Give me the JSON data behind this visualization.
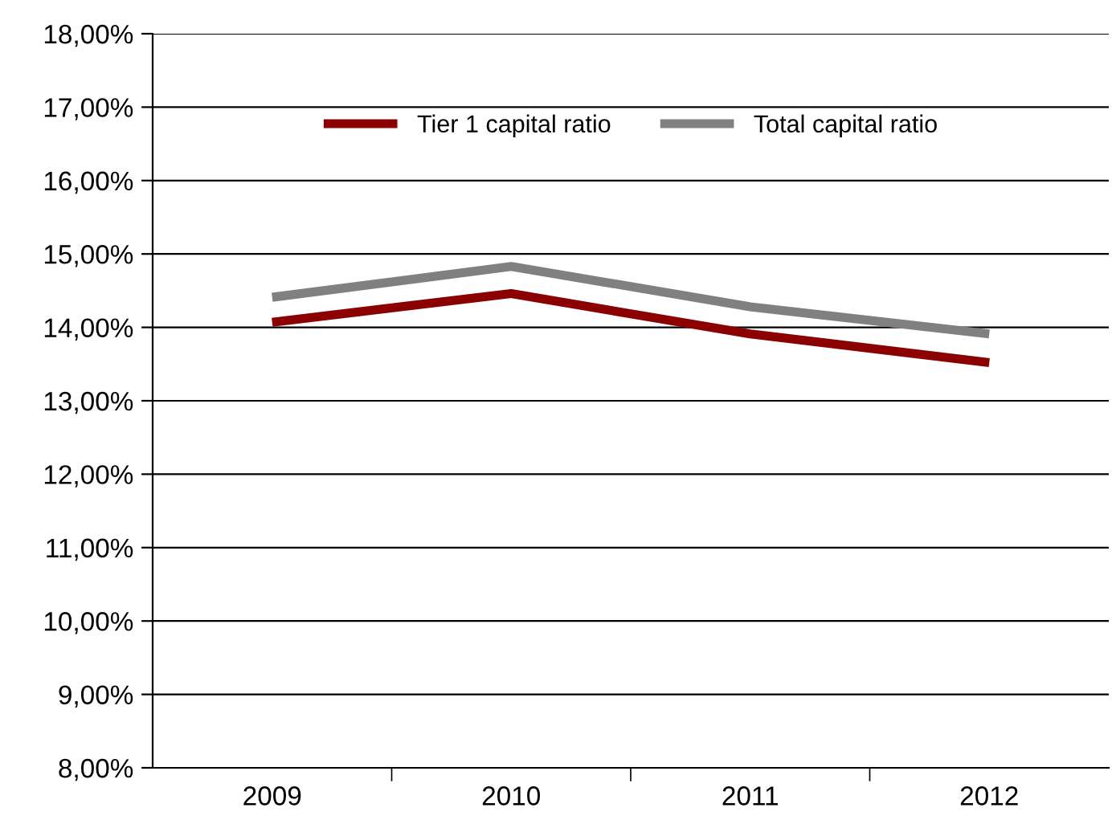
{
  "chart_data": {
    "type": "line",
    "categories": [
      "2009",
      "2010",
      "2011",
      "2012"
    ],
    "series": [
      {
        "name": "Tier 1 capital ratio",
        "color": "#8b0000",
        "values": [
          14.07,
          14.46,
          13.91,
          13.52
        ]
      },
      {
        "name": "Total capital ratio",
        "color": "#808080",
        "values": [
          14.41,
          14.83,
          14.28,
          13.91
        ]
      }
    ],
    "ylim": [
      8,
      18
    ],
    "yticks": [
      {
        "value": 8,
        "label": "8,00%"
      },
      {
        "value": 9,
        "label": "9,00%"
      },
      {
        "value": 10,
        "label": "10,00%"
      },
      {
        "value": 11,
        "label": "11,00%"
      },
      {
        "value": 12,
        "label": "12,00%"
      },
      {
        "value": 13,
        "label": "13,00%"
      },
      {
        "value": 14,
        "label": "14,00%"
      },
      {
        "value": 15,
        "label": "15,00%"
      },
      {
        "value": 16,
        "label": "16,00%"
      },
      {
        "value": 17,
        "label": "17,00%"
      },
      {
        "value": 18,
        "label": "18,00%"
      }
    ],
    "grid": "y",
    "legend": "top",
    "marker": "none",
    "line_style": "solid"
  }
}
